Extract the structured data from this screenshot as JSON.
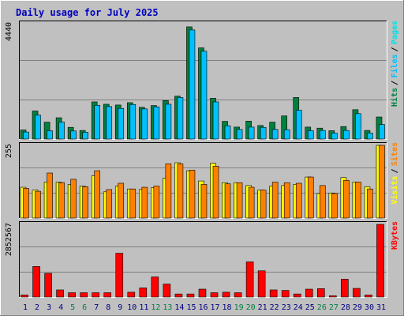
{
  "title": "Daily usage for July 2025",
  "colors": {
    "background": "#c0c0c0",
    "title": "#0000c0",
    "hits": "#008040",
    "files": "#00c0ff",
    "pages": "#00e0e0",
    "visits": "#ffff00",
    "sites": "#ff8000",
    "kbytes": "#ff0000",
    "weekend_label": "#008040",
    "day_label": "#000080"
  },
  "chart_data": [
    {
      "type": "bar",
      "panel": "hits-files-pages",
      "ymax_label": "4440",
      "legend": [
        {
          "name": "Hits",
          "color_key": "hits"
        },
        {
          "name": "Files",
          "color_key": "files"
        },
        {
          "name": "Pages",
          "color_key": "pages"
        }
      ],
      "ylim": [
        0,
        4440
      ],
      "series": [
        {
          "name": "Hits",
          "values": [
            350,
            1080,
            650,
            820,
            450,
            330,
            1430,
            1340,
            1310,
            1400,
            1220,
            1290,
            1480,
            1650,
            4320,
            3510,
            1570,
            680,
            460,
            690,
            520,
            650,
            890,
            1600,
            460,
            420,
            320,
            480,
            1130,
            330,
            850
          ]
        },
        {
          "name": "Files",
          "values": [
            270,
            920,
            320,
            650,
            310,
            260,
            1300,
            1250,
            1180,
            1330,
            1160,
            1240,
            1340,
            1600,
            4200,
            3380,
            1430,
            510,
            370,
            460,
            450,
            370,
            360,
            1110,
            320,
            330,
            230,
            330,
            980,
            230,
            560
          ]
        }
      ]
    },
    {
      "type": "bar",
      "panel": "visits-sites",
      "ymax_label": "255",
      "legend": [
        {
          "name": "Visits",
          "color_key": "visits"
        },
        {
          "name": "Sites",
          "color_key": "sites"
        }
      ],
      "ylim": [
        0,
        255
      ],
      "series": [
        {
          "name": "Visits",
          "values": [
            108,
            98,
            126,
            126,
            118,
            112,
            148,
            92,
            112,
            102,
            100,
            106,
            140,
            194,
            166,
            130,
            192,
            124,
            124,
            114,
            98,
            112,
            114,
            118,
            144,
            86,
            88,
            142,
            126,
            110,
            255
          ]
        },
        {
          "name": "Sites",
          "values": [
            104,
            94,
            158,
            124,
            136,
            110,
            166,
            100,
            122,
            102,
            108,
            112,
            190,
            190,
            168,
            118,
            182,
            120,
            124,
            108,
            98,
            126,
            124,
            122,
            144,
            114,
            86,
            132,
            126,
            102,
            255
          ]
        }
      ]
    },
    {
      "type": "bar",
      "panel": "kbytes",
      "ymax_label": "2852567",
      "legend": [
        {
          "name": "KBytes",
          "color_key": "kbytes"
        }
      ],
      "ylim": [
        0,
        2852567
      ],
      "categories": [
        "1",
        "2",
        "3",
        "4",
        "5",
        "6",
        "7",
        "8",
        "9",
        "10",
        "11",
        "12",
        "13",
        "14",
        "15",
        "16",
        "17",
        "18",
        "19",
        "20",
        "21",
        "22",
        "23",
        "24",
        "25",
        "26",
        "27",
        "28",
        "29",
        "30",
        "31"
      ],
      "weekend_days": [
        "5",
        "6",
        "12",
        "13",
        "19",
        "20",
        "26",
        "27"
      ],
      "series": [
        {
          "name": "KBytes",
          "values": [
            80000,
            1200000,
            930000,
            280000,
            170000,
            170000,
            170000,
            170000,
            1720000,
            190000,
            360000,
            790000,
            510000,
            120000,
            120000,
            310000,
            170000,
            190000,
            170000,
            1380000,
            1030000,
            280000,
            260000,
            120000,
            310000,
            330000,
            50000,
            700000,
            340000,
            80000,
            2852567
          ]
        }
      ]
    }
  ]
}
